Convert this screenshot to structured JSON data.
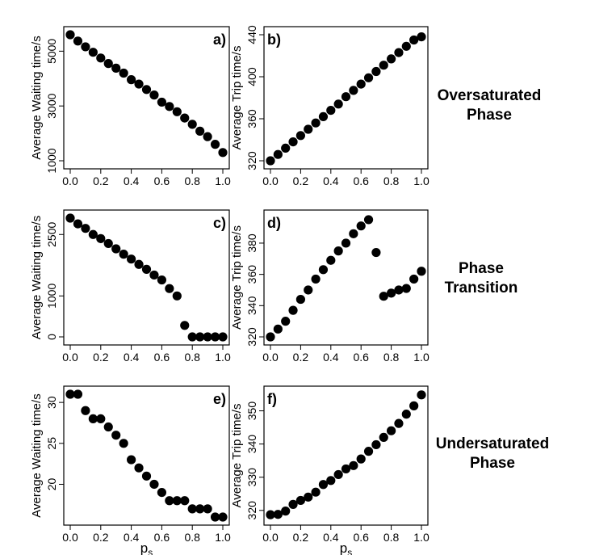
{
  "x_axis_label": "p",
  "x_axis_label_sub": "s",
  "row_labels": [
    [
      "Oversaturated",
      "Phase"
    ],
    [
      "Phase",
      "Transition"
    ],
    [
      "Undersaturated",
      "Phase"
    ]
  ],
  "colors": {
    "point": "#000000",
    "axis": "#000000",
    "background": "#ffffff"
  },
  "chart_data": [
    {
      "type": "scatter",
      "panel": "a)",
      "ylabel": "Average Waiting time/s",
      "xlim": [
        0,
        1
      ],
      "ylim": [
        1000,
        5600
      ],
      "xticks": [
        0.0,
        0.2,
        0.4,
        0.6,
        0.8,
        1.0
      ],
      "xtick_labels": [
        "0.0",
        "0.2",
        "0.4",
        "0.6",
        "0.8",
        "1.0"
      ],
      "yticks": [
        1000,
        3000,
        5000
      ],
      "ytick_labels": [
        "1000",
        "3000",
        "5000"
      ],
      "x": [
        0.0,
        0.05,
        0.1,
        0.15,
        0.2,
        0.25,
        0.3,
        0.35,
        0.4,
        0.45,
        0.5,
        0.55,
        0.6,
        0.65,
        0.7,
        0.75,
        0.8,
        0.85,
        0.9,
        0.95,
        1.0
      ],
      "y": [
        5600,
        5370,
        5160,
        4960,
        4750,
        4550,
        4380,
        4200,
        3960,
        3800,
        3600,
        3400,
        3140,
        2980,
        2790,
        2560,
        2330,
        2080,
        1880,
        1600,
        1300
      ]
    },
    {
      "type": "scatter",
      "panel": "b)",
      "ylabel": "Average Trip time/s",
      "xlim": [
        0,
        1
      ],
      "ylim": [
        320,
        440
      ],
      "xticks": [
        0.0,
        0.2,
        0.4,
        0.6,
        0.8,
        1.0
      ],
      "xtick_labels": [
        "0.0",
        "0.2",
        "0.4",
        "0.6",
        "0.8",
        "1.0"
      ],
      "yticks": [
        320,
        360,
        400,
        440
      ],
      "ytick_labels": [
        "320",
        "360",
        "400",
        "440"
      ],
      "x": [
        0.0,
        0.05,
        0.1,
        0.15,
        0.2,
        0.25,
        0.3,
        0.35,
        0.4,
        0.45,
        0.5,
        0.55,
        0.6,
        0.65,
        0.7,
        0.75,
        0.8,
        0.85,
        0.9,
        0.95,
        1.0
      ],
      "y": [
        320,
        326,
        332,
        338,
        344,
        350,
        356,
        362,
        368,
        374,
        381,
        387,
        393,
        399,
        405,
        411,
        417,
        423,
        429,
        435,
        438
      ]
    },
    {
      "type": "scatter",
      "panel": "c)",
      "ylabel": "Average Waiting time/s",
      "xlim": [
        0,
        1
      ],
      "ylim": [
        0,
        2900
      ],
      "xticks": [
        0.0,
        0.2,
        0.4,
        0.6,
        0.8,
        1.0
      ],
      "xtick_labels": [
        "0.0",
        "0.2",
        "0.4",
        "0.6",
        "0.8",
        "1.0"
      ],
      "yticks": [
        0,
        1000,
        2500
      ],
      "ytick_labels": [
        "0",
        "1000",
        "2500"
      ],
      "x": [
        0.0,
        0.05,
        0.1,
        0.15,
        0.2,
        0.25,
        0.3,
        0.35,
        0.4,
        0.45,
        0.5,
        0.55,
        0.6,
        0.65,
        0.7,
        0.75,
        0.8,
        0.85,
        0.9,
        0.95,
        1.0
      ],
      "y": [
        2900,
        2760,
        2650,
        2500,
        2400,
        2280,
        2150,
        2020,
        1900,
        1770,
        1650,
        1510,
        1390,
        1180,
        1000,
        280,
        0,
        0,
        0,
        0,
        0
      ]
    },
    {
      "type": "scatter",
      "panel": "d)",
      "ylabel": "Average Trip time/s",
      "xlim": [
        0,
        1
      ],
      "ylim": [
        320,
        396
      ],
      "xticks": [
        0.0,
        0.2,
        0.4,
        0.6,
        0.8,
        1.0
      ],
      "xtick_labels": [
        "0.0",
        "0.2",
        "0.4",
        "0.6",
        "0.8",
        "1.0"
      ],
      "yticks": [
        320,
        340,
        360,
        380
      ],
      "ytick_labels": [
        "320",
        "340",
        "360",
        "380"
      ],
      "x": [
        0.0,
        0.05,
        0.1,
        0.15,
        0.2,
        0.25,
        0.3,
        0.35,
        0.4,
        0.45,
        0.5,
        0.55,
        0.6,
        0.65,
        0.7,
        0.75,
        0.8,
        0.85,
        0.9,
        0.95,
        1.0
      ],
      "y": [
        320,
        325,
        330,
        337,
        344,
        350,
        357,
        363,
        369,
        375,
        380,
        386,
        391,
        395,
        374,
        346,
        348,
        350,
        351,
        357,
        362
      ]
    },
    {
      "type": "scatter",
      "panel": "e)",
      "ylabel": "Average Waiting time/s",
      "xlim": [
        0,
        1
      ],
      "ylim": [
        16,
        31
      ],
      "xticks": [
        0.0,
        0.2,
        0.4,
        0.6,
        0.8,
        1.0
      ],
      "xtick_labels": [
        "0.0",
        "0.2",
        "0.4",
        "0.6",
        "0.8",
        "1.0"
      ],
      "yticks": [
        20,
        25,
        30
      ],
      "ytick_labels": [
        "20",
        "25",
        "30"
      ],
      "x": [
        0.0,
        0.05,
        0.1,
        0.15,
        0.2,
        0.25,
        0.3,
        0.35,
        0.4,
        0.45,
        0.5,
        0.55,
        0.6,
        0.65,
        0.7,
        0.75,
        0.8,
        0.85,
        0.9,
        0.95,
        1.0
      ],
      "y": [
        31,
        31,
        29,
        28,
        28,
        27,
        26,
        25,
        23,
        22,
        21,
        20,
        19,
        18,
        18,
        18,
        17,
        17,
        17,
        16,
        16
      ]
    },
    {
      "type": "scatter",
      "panel": "f)",
      "ylabel": "Average Trip time/s",
      "xlim": [
        0,
        1
      ],
      "ylim": [
        318,
        355
      ],
      "xticks": [
        0.0,
        0.2,
        0.4,
        0.6,
        0.8,
        1.0
      ],
      "xtick_labels": [
        "0.0",
        "0.2",
        "0.4",
        "0.6",
        "0.8",
        "1.0"
      ],
      "yticks": [
        320,
        330,
        340,
        350
      ],
      "ytick_labels": [
        "320",
        "330",
        "340",
        "350"
      ],
      "x": [
        0.0,
        0.05,
        0.1,
        0.15,
        0.2,
        0.25,
        0.3,
        0.35,
        0.4,
        0.45,
        0.5,
        0.55,
        0.6,
        0.65,
        0.7,
        0.75,
        0.8,
        0.85,
        0.9,
        0.95,
        1.0
      ],
      "y": [
        318.7,
        318.8,
        319.8,
        321.8,
        323,
        324,
        325.5,
        327.8,
        329,
        330.8,
        332.5,
        333.5,
        335.5,
        337.8,
        339.8,
        342,
        344,
        346.2,
        349,
        351.5,
        354.8
      ]
    }
  ]
}
